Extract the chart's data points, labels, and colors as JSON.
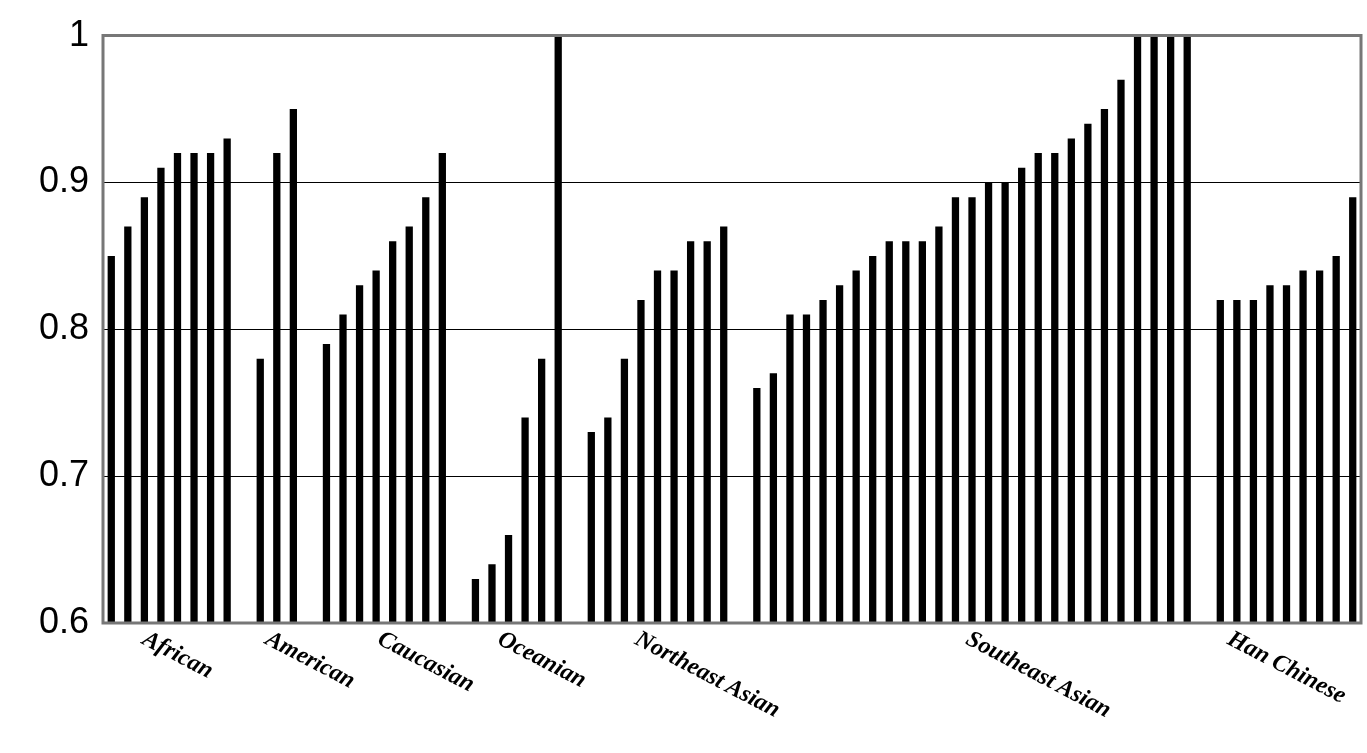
{
  "chart_data": {
    "type": "bar",
    "categories": [
      null,
      null,
      null,
      null,
      "African",
      null,
      null,
      null,
      null,
      null,
      null,
      null,
      "American",
      null,
      null,
      null,
      null,
      null,
      null,
      "Caucasian",
      null,
      null,
      null,
      null,
      null,
      null,
      "Oceanian",
      null,
      null,
      null,
      null,
      null,
      null,
      null,
      null,
      null,
      "Northeast Asian",
      null,
      null,
      null,
      null,
      null,
      null,
      null,
      null,
      null,
      null,
      null,
      null,
      null,
      null,
      null,
      null,
      null,
      null,
      null,
      "Southeast Asian",
      null,
      null,
      null,
      null,
      null,
      null,
      null,
      null,
      null,
      null,
      null,
      null,
      null,
      null,
      "Han Chinese",
      null,
      null,
      null,
      null
    ],
    "values": [
      0.85,
      0.87,
      0.89,
      0.91,
      0.92,
      0.92,
      0.92,
      0.93,
      null,
      0.78,
      0.92,
      0.95,
      null,
      0.79,
      0.81,
      0.83,
      0.84,
      0.86,
      0.87,
      0.89,
      0.92,
      null,
      0.63,
      0.64,
      0.66,
      0.74,
      0.78,
      1.0,
      null,
      0.73,
      0.74,
      0.78,
      0.82,
      0.84,
      0.84,
      0.86,
      0.86,
      0.87,
      null,
      0.76,
      0.77,
      0.81,
      0.81,
      0.82,
      0.83,
      0.84,
      0.85,
      0.86,
      0.86,
      0.86,
      0.87,
      0.89,
      0.89,
      0.9,
      0.9,
      0.91,
      0.92,
      0.92,
      0.93,
      0.94,
      0.95,
      0.97,
      1.0,
      1.0,
      1.0,
      1.0,
      null,
      0.82,
      0.82,
      0.82,
      0.83,
      0.83,
      0.84,
      0.84,
      0.85,
      0.89
    ],
    "color": "#000000",
    "ylim": [
      0.6,
      1
    ],
    "yticks": [
      {
        "value": 0.6,
        "label": "0.6"
      },
      {
        "value": 0.7,
        "label": "0.7"
      },
      {
        "value": 0.8,
        "label": "0.8"
      },
      {
        "value": 0.9,
        "label": "0.9"
      },
      {
        "value": 1,
        "label": "1"
      }
    ],
    "grid": "y"
  }
}
